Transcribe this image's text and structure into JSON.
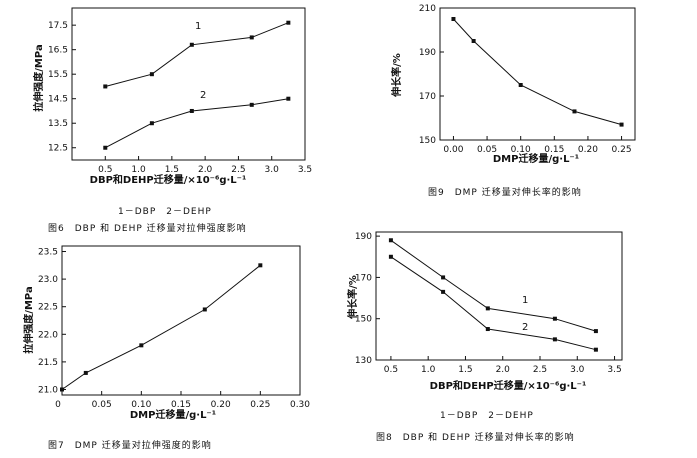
{
  "chart_data": [
    {
      "id": "fig6",
      "type": "line",
      "caption": "图6　DBP 和 DEHP 迁移量对拉伸强度影响",
      "legend_note": "1－DBP　2－DEHP",
      "xlabel": "DBP和DEHP迁移量/×10⁻⁶g·L⁻¹",
      "ylabel": "拉伸强度/MPa",
      "xlim": [
        0,
        3.5
      ],
      "ylim": [
        12.0,
        18.2
      ],
      "xticks": [
        "0.5",
        "1.0",
        "1.5",
        "2.0",
        "2.5",
        "3.0",
        "3.5"
      ],
      "yticks": [
        "12.5",
        "13.5",
        "14.5",
        "15.5",
        "16.5",
        "17.5"
      ],
      "series": [
        {
          "name": "1",
          "x": [
            0.5,
            1.2,
            1.8,
            2.7,
            3.25
          ],
          "values": [
            15.0,
            15.5,
            16.7,
            17.0,
            17.6
          ]
        },
        {
          "name": "2",
          "x": [
            0.5,
            1.2,
            1.8,
            2.7,
            3.25
          ],
          "values": [
            12.5,
            13.5,
            14.0,
            14.25,
            14.5
          ]
        }
      ]
    },
    {
      "id": "fig9",
      "type": "line",
      "caption": "图9　DMP 迁移量对伸长率的影响",
      "xlabel": "DMP迁移量/g·L⁻¹",
      "ylabel": "伸长率/%",
      "xlim": [
        -0.02,
        0.27
      ],
      "ylim": [
        150,
        210
      ],
      "xticks": [
        "0.00",
        "0.05",
        "0.10",
        "0.15",
        "0.20",
        "0.25"
      ],
      "yticks": [
        "150",
        "170",
        "190",
        "210"
      ],
      "series": [
        {
          "name": "DMP",
          "x": [
            0.0,
            0.03,
            0.1,
            0.18,
            0.25
          ],
          "values": [
            205,
            195,
            175,
            163,
            157
          ]
        }
      ]
    },
    {
      "id": "fig7",
      "type": "line",
      "caption": "图7　DMP 迁移量对拉伸强度的影响",
      "xlabel": "DMP迁移量/g·L⁻¹",
      "ylabel": "拉伸强度/MPa",
      "xlim": [
        0,
        0.3
      ],
      "ylim": [
        20.9,
        23.6
      ],
      "xticks": [
        "0.05",
        "0.10",
        "0.15",
        "0.20",
        "0.25",
        "0.30"
      ],
      "yticks": [
        "21.0",
        "21.5",
        "22.0",
        "22.5",
        "23.0",
        "23.5"
      ],
      "series": [
        {
          "name": "DMP",
          "x": [
            0.0,
            0.03,
            0.1,
            0.18,
            0.25
          ],
          "values": [
            21.0,
            21.3,
            21.8,
            22.45,
            23.25
          ]
        }
      ]
    },
    {
      "id": "fig8",
      "type": "line",
      "caption": "图8　DBP 和 DEHP 迁移量对伸长率的影响",
      "legend_note": "1－DBP　2－DEHP",
      "xlabel": "DBP和DEHP迁移量/×10⁻⁶g·L⁻¹",
      "ylabel": "伸长率/%",
      "xlim": [
        0.3,
        3.6
      ],
      "ylim": [
        130,
        192
      ],
      "xticks": [
        "0.5",
        "1.0",
        "1.5",
        "2.0",
        "2.5",
        "3.0",
        "3.5"
      ],
      "yticks": [
        "130",
        "150",
        "170",
        "190"
      ],
      "series": [
        {
          "name": "1",
          "x": [
            0.5,
            1.2,
            1.8,
            2.7,
            3.25
          ],
          "values": [
            188,
            170,
            155,
            150,
            144
          ]
        },
        {
          "name": "2",
          "x": [
            0.5,
            1.2,
            1.8,
            2.7,
            3.25
          ],
          "values": [
            180,
            163,
            145,
            140,
            135
          ]
        }
      ]
    }
  ]
}
